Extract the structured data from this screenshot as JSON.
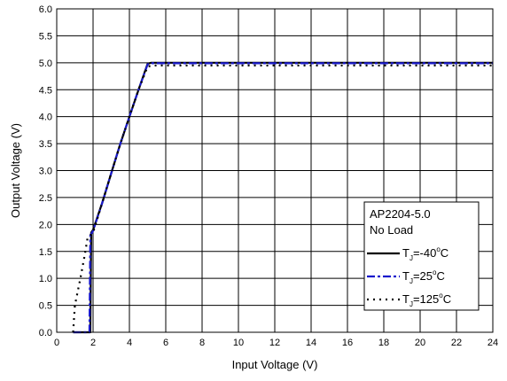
{
  "chart_data": {
    "type": "line",
    "title": "",
    "xlabel": "Input Voltage (V)",
    "ylabel": "Output Voltage (V)",
    "xlim": [
      0,
      24
    ],
    "ylim": [
      0,
      6
    ],
    "x_ticks": [
      "0",
      "2",
      "4",
      "6",
      "8",
      "10",
      "12",
      "14",
      "16",
      "18",
      "20",
      "22",
      "24"
    ],
    "y_ticks": [
      "0.0",
      "0.5",
      "1.0",
      "1.5",
      "2.0",
      "2.5",
      "3.0",
      "3.5",
      "4.0",
      "4.5",
      "5.0",
      "5.5",
      "6.0"
    ],
    "grid": true,
    "legend": {
      "placement": "bottom-right",
      "header_line1": "AP2204-5.0",
      "header_line2": "No Load",
      "entries": [
        {
          "main": "T",
          "sub": "J",
          "rest": "=-40",
          "sup": "o",
          "unit": "C",
          "style": "solid",
          "color": "#000000"
        },
        {
          "main": "T",
          "sub": "J",
          "rest": "=25",
          "sup": "o",
          "unit": "C",
          "style": "dash-dot",
          "color": "#1a1acc"
        },
        {
          "main": "T",
          "sub": "J",
          "rest": "=125",
          "sup": "o",
          "unit": "C",
          "style": "dotted",
          "color": "#000000"
        }
      ]
    },
    "series": [
      {
        "style": "solid",
        "color": "#000000",
        "x": [
          0.9,
          1.85,
          1.9,
          2.0,
          2.5,
          3.0,
          3.5,
          4.0,
          4.5,
          5.0,
          5.2,
          8,
          12,
          16,
          20,
          24
        ],
        "y": [
          0.0,
          0.0,
          1.85,
          1.9,
          2.4,
          2.95,
          3.5,
          4.0,
          4.5,
          4.98,
          5.0,
          5.0,
          5.0,
          5.0,
          5.0,
          5.0
        ]
      },
      {
        "style": "dash-dot",
        "color": "#1a1acc",
        "x": [
          0.9,
          1.8,
          1.85,
          2.0,
          2.5,
          3.0,
          3.5,
          4.0,
          4.5,
          5.0,
          5.2,
          8,
          12,
          16,
          20,
          24
        ],
        "y": [
          0.0,
          0.0,
          1.8,
          1.88,
          2.4,
          2.95,
          3.5,
          4.0,
          4.5,
          4.97,
          4.99,
          4.99,
          4.99,
          4.99,
          4.99,
          4.99
        ]
      },
      {
        "style": "dotted",
        "color": "#000000",
        "x": [
          0.9,
          1.0,
          1.3,
          1.55,
          1.7,
          2.0,
          2.5,
          3.0,
          3.5,
          4.0,
          4.5,
          5.0,
          5.3,
          8,
          12,
          16,
          20,
          24
        ],
        "y": [
          0.0,
          0.5,
          1.0,
          1.45,
          1.75,
          1.85,
          2.4,
          2.95,
          3.5,
          4.0,
          4.5,
          4.93,
          4.95,
          4.95,
          4.95,
          4.95,
          4.95,
          4.95
        ]
      }
    ]
  }
}
